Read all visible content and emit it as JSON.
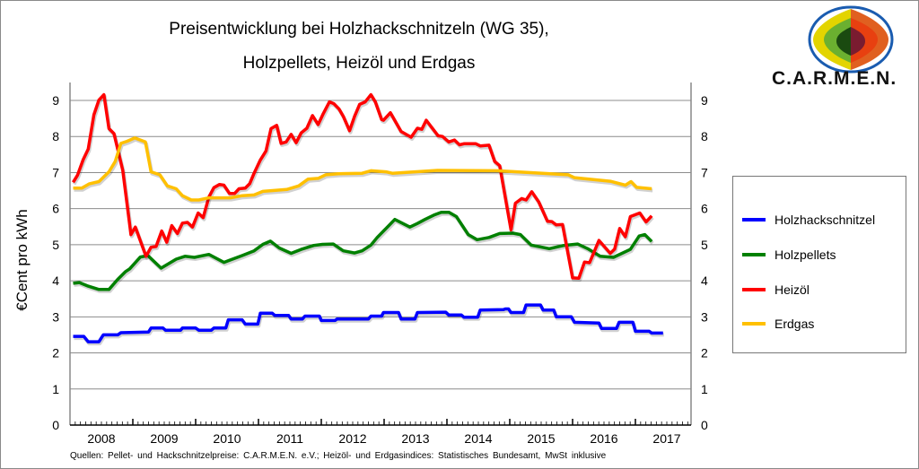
{
  "chart_data": {
    "type": "line",
    "title_line1": "Preisentwicklung bei Holzhackschnitzeln (WG 35),",
    "title_line2": "Holzpellets, Heizöl und Erdgas",
    "xlabel": "",
    "ylabel": "€Cent pro kWh",
    "xlim": [
      2008.0,
      2017.9
    ],
    "ylim": [
      0,
      9
    ],
    "yticks": [
      "0",
      "1",
      "2",
      "3",
      "4",
      "5",
      "6",
      "7",
      "8",
      "9"
    ],
    "xtick_labels": [
      "2008",
      "2009",
      "2010",
      "2011",
      "2012",
      "2013",
      "2014",
      "2015",
      "2016",
      "2017"
    ],
    "grid": true,
    "legend_position": "right",
    "source": "Quellen:  Pellet- und Hackschnitzelpreise:  C.A.R.M.E.N. e.V.; Heizöl- und Erdgasindices: Statistisches Bundesamt,  MwSt inklusive",
    "logo_text": "C.A.R.M.E.N.",
    "series": [
      {
        "name": "Holzhackschnitzel",
        "color": "#0000ff",
        "step": true,
        "x": [
          2008.05,
          2008.22,
          2008.29,
          2008.46,
          2008.53,
          2008.76,
          2008.81,
          2009.25,
          2009.29,
          2009.48,
          2009.52,
          2009.76,
          2009.79,
          2010.0,
          2010.05,
          2010.25,
          2010.29,
          2010.48,
          2010.52,
          2010.74,
          2010.79,
          2010.99,
          2011.03,
          2011.22,
          2011.26,
          2011.48,
          2011.52,
          2011.7,
          2011.74,
          2011.97,
          2012.0,
          2012.22,
          2012.25,
          2012.75,
          2012.79,
          2012.96,
          2012.99,
          2013.23,
          2013.27,
          2013.49,
          2013.53,
          2013.98,
          2014.03,
          2014.23,
          2014.27,
          2014.49,
          2014.53,
          2014.9,
          2014.93,
          2014.98,
          2015.02,
          2015.22,
          2015.26,
          2015.49,
          2015.53,
          2015.7,
          2015.74,
          2015.98,
          2016.03,
          2016.42,
          2016.46,
          2016.7,
          2016.74,
          2016.96,
          2017.0,
          2017.22,
          2017.26,
          2017.44
        ],
        "y": [
          2.46,
          2.46,
          2.31,
          2.31,
          2.5,
          2.5,
          2.56,
          2.58,
          2.69,
          2.69,
          2.63,
          2.63,
          2.69,
          2.69,
          2.63,
          2.63,
          2.69,
          2.69,
          2.92,
          2.92,
          2.8,
          2.8,
          3.1,
          3.1,
          3.04,
          3.04,
          2.94,
          2.94,
          3.02,
          3.02,
          2.9,
          2.9,
          2.94,
          2.94,
          3.02,
          3.02,
          3.12,
          3.12,
          2.94,
          2.94,
          3.12,
          3.13,
          3.05,
          3.05,
          2.99,
          2.99,
          3.19,
          3.2,
          3.22,
          3.22,
          3.12,
          3.12,
          3.33,
          3.33,
          3.19,
          3.19,
          3.0,
          3.0,
          2.85,
          2.83,
          2.68,
          2.68,
          2.85,
          2.85,
          2.6,
          2.6,
          2.55,
          2.55
        ]
      },
      {
        "name": "Holzpellets",
        "color": "#008000",
        "x": [
          2008.05,
          2008.15,
          2008.29,
          2008.46,
          2008.62,
          2008.76,
          2008.88,
          2008.95,
          2009.12,
          2009.24,
          2009.45,
          2009.69,
          2009.83,
          2009.98,
          2010.21,
          2010.45,
          2010.74,
          2010.93,
          2011.07,
          2011.19,
          2011.33,
          2011.52,
          2011.68,
          2011.88,
          2012.02,
          2012.19,
          2012.35,
          2012.53,
          2012.65,
          2012.79,
          2012.89,
          2013.03,
          2013.17,
          2013.41,
          2013.53,
          2013.65,
          2013.79,
          2013.91,
          2014.03,
          2014.15,
          2014.34,
          2014.48,
          2014.67,
          2014.84,
          2015.05,
          2015.17,
          2015.34,
          2015.63,
          2015.86,
          2016.08,
          2016.24,
          2016.44,
          2016.65,
          2016.92,
          2017.06,
          2017.15,
          2017.26
        ],
        "y": [
          3.93,
          3.95,
          3.85,
          3.76,
          3.76,
          4.04,
          4.25,
          4.33,
          4.66,
          4.7,
          4.35,
          4.6,
          4.68,
          4.65,
          4.73,
          4.51,
          4.7,
          4.83,
          5.01,
          5.1,
          4.91,
          4.76,
          4.87,
          4.98,
          5.01,
          5.02,
          4.83,
          4.77,
          4.83,
          4.99,
          5.2,
          5.45,
          5.7,
          5.49,
          5.59,
          5.7,
          5.82,
          5.9,
          5.9,
          5.78,
          5.28,
          5.14,
          5.2,
          5.31,
          5.32,
          5.28,
          4.99,
          4.89,
          4.98,
          5.02,
          4.89,
          4.68,
          4.65,
          4.87,
          5.24,
          5.28,
          5.09
        ]
      },
      {
        "name": "Heizöl",
        "color": "#ff0000",
        "x": [
          2008.05,
          2008.12,
          2008.21,
          2008.29,
          2008.38,
          2008.46,
          2008.54,
          2008.62,
          2008.7,
          2008.84,
          2008.97,
          2009.04,
          2009.21,
          2009.29,
          2009.37,
          2009.46,
          2009.54,
          2009.62,
          2009.71,
          2009.79,
          2009.87,
          2009.95,
          2010.04,
          2010.12,
          2010.21,
          2010.29,
          2010.38,
          2010.45,
          2010.54,
          2010.62,
          2010.69,
          2010.79,
          2010.86,
          2010.93,
          2011.03,
          2011.12,
          2011.2,
          2011.29,
          2011.36,
          2011.44,
          2011.52,
          2011.6,
          2011.68,
          2011.77,
          2011.86,
          2011.95,
          2012.03,
          2012.13,
          2012.2,
          2012.28,
          2012.35,
          2012.45,
          2012.53,
          2012.61,
          2012.7,
          2012.79,
          2012.86,
          2012.96,
          2012.99,
          2013.1,
          2013.27,
          2013.43,
          2013.53,
          2013.6,
          2013.67,
          2013.86,
          2013.93,
          2014.03,
          2014.12,
          2014.2,
          2014.27,
          2014.46,
          2014.53,
          2014.67,
          2014.76,
          2014.84,
          2015.02,
          2015.09,
          2015.19,
          2015.26,
          2015.35,
          2015.46,
          2015.6,
          2015.67,
          2015.74,
          2015.84,
          2016.0,
          2016.1,
          2016.19,
          2016.27,
          2016.42,
          2016.6,
          2016.67,
          2016.75,
          2016.84,
          2016.92,
          2017.07,
          2017.17,
          2017.26
        ],
        "y": [
          6.73,
          6.93,
          7.36,
          7.65,
          8.6,
          9.01,
          9.16,
          8.22,
          8.08,
          7.06,
          5.28,
          5.49,
          4.68,
          4.93,
          4.95,
          5.38,
          5.07,
          5.53,
          5.31,
          5.6,
          5.62,
          5.49,
          5.88,
          5.75,
          6.32,
          6.58,
          6.67,
          6.65,
          6.42,
          6.42,
          6.55,
          6.57,
          6.69,
          6.98,
          7.35,
          7.6,
          8.22,
          8.31,
          7.81,
          7.85,
          8.06,
          7.83,
          8.1,
          8.23,
          8.58,
          8.33,
          8.63,
          8.96,
          8.91,
          8.77,
          8.56,
          8.16,
          8.56,
          8.89,
          8.96,
          9.16,
          8.96,
          8.47,
          8.45,
          8.66,
          8.14,
          7.98,
          8.23,
          8.2,
          8.45,
          8.02,
          8.0,
          7.85,
          7.9,
          7.77,
          7.8,
          7.8,
          7.74,
          7.76,
          7.31,
          7.19,
          5.41,
          6.15,
          6.28,
          6.24,
          6.47,
          6.19,
          5.65,
          5.64,
          5.55,
          5.56,
          4.08,
          4.07,
          4.52,
          4.5,
          5.12,
          4.76,
          4.88,
          5.45,
          5.22,
          5.78,
          5.88,
          5.63,
          5.8
        ]
      },
      {
        "name": "Erdgas",
        "color": "#ffc000",
        "x": [
          2008.05,
          2008.19,
          2008.31,
          2008.46,
          2008.62,
          2008.72,
          2008.81,
          2008.91,
          2009.03,
          2009.2,
          2009.29,
          2009.43,
          2009.55,
          2009.69,
          2009.79,
          2009.93,
          2010.05,
          2010.21,
          2010.55,
          2010.74,
          2010.93,
          2011.07,
          2011.45,
          2011.64,
          2011.79,
          2011.95,
          2012.07,
          2012.27,
          2012.65,
          2012.79,
          2013.03,
          2013.13,
          2013.85,
          2014.8,
          2015.93,
          2016.03,
          2016.6,
          2016.84,
          2016.93,
          2017.02,
          2017.26
        ],
        "y": [
          6.57,
          6.57,
          6.69,
          6.75,
          7.02,
          7.31,
          7.81,
          7.87,
          7.96,
          7.85,
          7.02,
          6.94,
          6.63,
          6.55,
          6.36,
          6.24,
          6.24,
          6.3,
          6.3,
          6.36,
          6.38,
          6.48,
          6.53,
          6.63,
          6.82,
          6.84,
          6.94,
          6.97,
          6.98,
          7.05,
          7.02,
          6.98,
          7.06,
          7.05,
          6.94,
          6.86,
          6.76,
          6.65,
          6.75,
          6.59,
          6.55
        ]
      }
    ]
  }
}
